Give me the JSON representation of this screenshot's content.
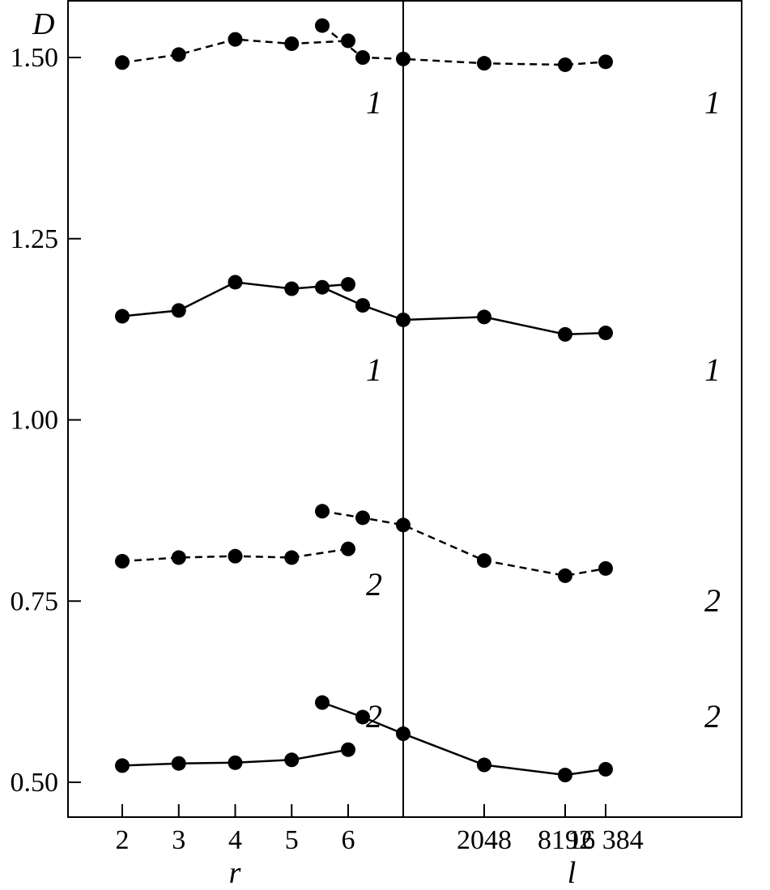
{
  "chart_data": [
    {
      "type": "line",
      "panel": "left",
      "xlabel": "r",
      "ylabel": "D",
      "x": [
        2,
        3,
        4,
        5,
        6
      ],
      "x_tick_labels": [
        "2",
        "3",
        "4",
        "5",
        "6"
      ],
      "ylim": [
        0.44,
        1.57
      ],
      "y_ticks": [
        0.5,
        0.75,
        1.0,
        1.25,
        1.5
      ],
      "y_tick_labels": [
        "0.50",
        "0.75",
        "1.00",
        "1.25",
        "1.50"
      ],
      "grid": false,
      "series": [
        {
          "style": "dashed",
          "curve_label": "1",
          "values": [
            1.493,
            1.504,
            1.525,
            1.519,
            1.523
          ]
        },
        {
          "style": "solid",
          "curve_label": "1",
          "values": [
            1.143,
            1.151,
            1.19,
            1.181,
            1.187
          ]
        },
        {
          "style": "dashed",
          "curve_label": "2",
          "values": [
            0.805,
            0.81,
            0.812,
            0.81,
            0.822
          ]
        },
        {
          "style": "solid",
          "curve_label": "2",
          "values": [
            0.523,
            0.526,
            0.527,
            0.531,
            0.545
          ]
        }
      ]
    },
    {
      "type": "line",
      "panel": "right",
      "xlabel": "l",
      "x": [
        128,
        256,
        512,
        2048,
        8192,
        16384
      ],
      "x_tick_values": [
        2048,
        8192,
        16384
      ],
      "x_tick_labels": [
        "2048",
        "8192",
        "16 384"
      ],
      "ylim": [
        0.44,
        1.57
      ],
      "grid": false,
      "series": [
        {
          "style": "dashed",
          "curve_label": "1",
          "values": [
            1.544,
            1.5,
            1.498,
            1.492,
            1.49,
            1.494
          ]
        },
        {
          "style": "solid",
          "curve_label": "1",
          "values": [
            1.183,
            1.158,
            1.138,
            1.142,
            1.118,
            1.12
          ]
        },
        {
          "style": "dashed",
          "curve_label": "2",
          "values": [
            0.874,
            0.865,
            0.855,
            0.806,
            0.785,
            0.795
          ]
        },
        {
          "style": "solid",
          "curve_label": "2",
          "values": [
            0.61,
            0.59,
            0.567,
            0.524,
            0.51,
            0.518
          ]
        }
      ]
    }
  ]
}
